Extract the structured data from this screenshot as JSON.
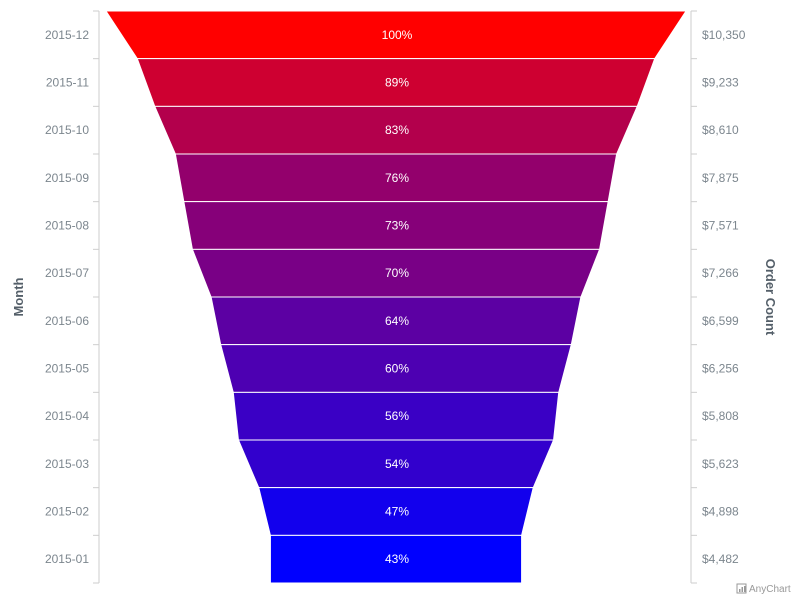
{
  "chart_data": {
    "type": "funnel",
    "title": "",
    "xlabel": "Month",
    "ylabel": "Order Count",
    "categories": [
      "2015-12",
      "2015-11",
      "2015-10",
      "2015-09",
      "2015-08",
      "2015-07",
      "2015-06",
      "2015-05",
      "2015-04",
      "2015-03",
      "2015-02",
      "2015-01"
    ],
    "values": [
      10350,
      9233,
      8610,
      7875,
      7571,
      7266,
      6599,
      6256,
      5808,
      5623,
      4898,
      4482
    ],
    "value_labels": [
      "$10,350",
      "$9,233",
      "$8,610",
      "$7,875",
      "$7,571",
      "$7,266",
      "$6,599",
      "$6,256",
      "$5,808",
      "$5,623",
      "$4,898",
      "$4,482"
    ],
    "percent_labels": [
      "100%",
      "89%",
      "83%",
      "76%",
      "73%",
      "70%",
      "64%",
      "60%",
      "56%",
      "54%",
      "47%",
      "43%"
    ],
    "color_start": "#ff0000",
    "color_end": "#0000ff",
    "grid": false,
    "legend": "none"
  },
  "credits": {
    "label": "AnyChart"
  }
}
